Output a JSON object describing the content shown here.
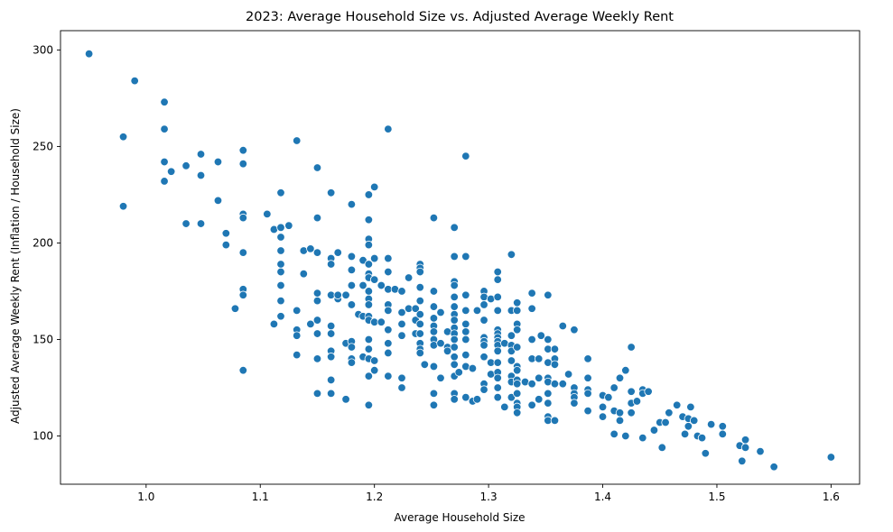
{
  "chart_data": {
    "type": "scatter",
    "title": "2023: Average Household Size vs. Adjusted Average Weekly Rent",
    "xlabel": "Average Household Size",
    "ylabel": "Adjusted Average Weekly Rent (Inflation / Household Size)",
    "xlim": [
      0.925,
      1.625
    ],
    "ylim": [
      75,
      310
    ],
    "xticks": [
      1.0,
      1.1,
      1.2,
      1.3,
      1.4,
      1.5,
      1.6
    ],
    "xtick_labels": [
      "1.0",
      "1.1",
      "1.2",
      "1.3",
      "1.4",
      "1.5",
      "1.6"
    ],
    "yticks": [
      100,
      150,
      200,
      250,
      300
    ],
    "ytick_labels": [
      "100",
      "150",
      "200",
      "250",
      "300"
    ],
    "grid": false,
    "marker_color": "#1f77b4",
    "marker_edge_color": "#ffffff",
    "points": [
      [
        0.95,
        298
      ],
      [
        0.98,
        255
      ],
      [
        0.98,
        219
      ],
      [
        0.99,
        284
      ],
      [
        1.016,
        273
      ],
      [
        1.016,
        259
      ],
      [
        1.016,
        242
      ],
      [
        1.016,
        232
      ],
      [
        1.022,
        237
      ],
      [
        1.035,
        240
      ],
      [
        1.035,
        210
      ],
      [
        1.048,
        246
      ],
      [
        1.048,
        235
      ],
      [
        1.048,
        210
      ],
      [
        1.063,
        242
      ],
      [
        1.063,
        222
      ],
      [
        1.07,
        205
      ],
      [
        1.07,
        199
      ],
      [
        1.078,
        166
      ],
      [
        1.085,
        248
      ],
      [
        1.085,
        241
      ],
      [
        1.085,
        215
      ],
      [
        1.085,
        213
      ],
      [
        1.085,
        195
      ],
      [
        1.085,
        176
      ],
      [
        1.085,
        173
      ],
      [
        1.085,
        134
      ],
      [
        1.106,
        215
      ],
      [
        1.112,
        207
      ],
      [
        1.112,
        158
      ],
      [
        1.118,
        226
      ],
      [
        1.118,
        208
      ],
      [
        1.118,
        203
      ],
      [
        1.118,
        196
      ],
      [
        1.118,
        189
      ],
      [
        1.118,
        185
      ],
      [
        1.118,
        178
      ],
      [
        1.118,
        170
      ],
      [
        1.118,
        162
      ],
      [
        1.125,
        209
      ],
      [
        1.132,
        253
      ],
      [
        1.132,
        165
      ],
      [
        1.132,
        155
      ],
      [
        1.132,
        152
      ],
      [
        1.132,
        142
      ],
      [
        1.138,
        196
      ],
      [
        1.138,
        184
      ],
      [
        1.144,
        197
      ],
      [
        1.144,
        158
      ],
      [
        1.15,
        239
      ],
      [
        1.15,
        213
      ],
      [
        1.15,
        195
      ],
      [
        1.15,
        174
      ],
      [
        1.15,
        170
      ],
      [
        1.15,
        160
      ],
      [
        1.15,
        153
      ],
      [
        1.15,
        140
      ],
      [
        1.15,
        122
      ],
      [
        1.162,
        226
      ],
      [
        1.162,
        192
      ],
      [
        1.162,
        189
      ],
      [
        1.162,
        173
      ],
      [
        1.162,
        157
      ],
      [
        1.162,
        153
      ],
      [
        1.162,
        144
      ],
      [
        1.162,
        141
      ],
      [
        1.162,
        129
      ],
      [
        1.162,
        122
      ],
      [
        1.168,
        195
      ],
      [
        1.168,
        171
      ],
      [
        1.168,
        173
      ],
      [
        1.175,
        173
      ],
      [
        1.175,
        148
      ],
      [
        1.175,
        119
      ],
      [
        1.18,
        220
      ],
      [
        1.18,
        193
      ],
      [
        1.18,
        186
      ],
      [
        1.18,
        178
      ],
      [
        1.18,
        168
      ],
      [
        1.18,
        149
      ],
      [
        1.18,
        146
      ],
      [
        1.18,
        140
      ],
      [
        1.18,
        138
      ],
      [
        1.186,
        163
      ],
      [
        1.19,
        162
      ],
      [
        1.19,
        141
      ],
      [
        1.19,
        191
      ],
      [
        1.19,
        178
      ],
      [
        1.195,
        225
      ],
      [
        1.195,
        212
      ],
      [
        1.195,
        202
      ],
      [
        1.195,
        199
      ],
      [
        1.195,
        189
      ],
      [
        1.195,
        184
      ],
      [
        1.195,
        182
      ],
      [
        1.195,
        175
      ],
      [
        1.195,
        171
      ],
      [
        1.195,
        168
      ],
      [
        1.195,
        162
      ],
      [
        1.195,
        160
      ],
      [
        1.195,
        150
      ],
      [
        1.195,
        145
      ],
      [
        1.195,
        140
      ],
      [
        1.195,
        131
      ],
      [
        1.195,
        116
      ],
      [
        1.2,
        229
      ],
      [
        1.2,
        192
      ],
      [
        1.2,
        181
      ],
      [
        1.2,
        159
      ],
      [
        1.2,
        139
      ],
      [
        1.2,
        134
      ],
      [
        1.206,
        178
      ],
      [
        1.206,
        159
      ],
      [
        1.212,
        259
      ],
      [
        1.212,
        192
      ],
      [
        1.212,
        185
      ],
      [
        1.212,
        176
      ],
      [
        1.212,
        168
      ],
      [
        1.212,
        165
      ],
      [
        1.212,
        155
      ],
      [
        1.212,
        148
      ],
      [
        1.212,
        143
      ],
      [
        1.212,
        131
      ],
      [
        1.218,
        176
      ],
      [
        1.224,
        175
      ],
      [
        1.224,
        164
      ],
      [
        1.224,
        158
      ],
      [
        1.224,
        152
      ],
      [
        1.224,
        130
      ],
      [
        1.224,
        125
      ],
      [
        1.23,
        182
      ],
      [
        1.23,
        166
      ],
      [
        1.236,
        160
      ],
      [
        1.236,
        166
      ],
      [
        1.236,
        153
      ],
      [
        1.24,
        189
      ],
      [
        1.24,
        187
      ],
      [
        1.24,
        185
      ],
      [
        1.24,
        177
      ],
      [
        1.24,
        170
      ],
      [
        1.24,
        163
      ],
      [
        1.24,
        158
      ],
      [
        1.24,
        153
      ],
      [
        1.24,
        148
      ],
      [
        1.24,
        145
      ],
      [
        1.24,
        143
      ],
      [
        1.244,
        137
      ],
      [
        1.252,
        213
      ],
      [
        1.252,
        175
      ],
      [
        1.252,
        167
      ],
      [
        1.252,
        161
      ],
      [
        1.252,
        157
      ],
      [
        1.252,
        154
      ],
      [
        1.252,
        150
      ],
      [
        1.252,
        147
      ],
      [
        1.252,
        136
      ],
      [
        1.252,
        122
      ],
      [
        1.252,
        116
      ],
      [
        1.258,
        164
      ],
      [
        1.258,
        148
      ],
      [
        1.258,
        130
      ],
      [
        1.264,
        154
      ],
      [
        1.264,
        146
      ],
      [
        1.264,
        144
      ],
      [
        1.27,
        208
      ],
      [
        1.27,
        193
      ],
      [
        1.27,
        180
      ],
      [
        1.27,
        178
      ],
      [
        1.27,
        172
      ],
      [
        1.27,
        167
      ],
      [
        1.27,
        163
      ],
      [
        1.27,
        160
      ],
      [
        1.27,
        156
      ],
      [
        1.27,
        153
      ],
      [
        1.27,
        150
      ],
      [
        1.27,
        146
      ],
      [
        1.27,
        141
      ],
      [
        1.27,
        137
      ],
      [
        1.27,
        131
      ],
      [
        1.27,
        122
      ],
      [
        1.27,
        119
      ],
      [
        1.274,
        133
      ],
      [
        1.28,
        245
      ],
      [
        1.28,
        193
      ],
      [
        1.28,
        173
      ],
      [
        1.28,
        165
      ],
      [
        1.28,
        158
      ],
      [
        1.28,
        154
      ],
      [
        1.28,
        150
      ],
      [
        1.28,
        142
      ],
      [
        1.28,
        136
      ],
      [
        1.28,
        120
      ],
      [
        1.286,
        135
      ],
      [
        1.286,
        118
      ],
      [
        1.29,
        165
      ],
      [
        1.29,
        119
      ],
      [
        1.296,
        175
      ],
      [
        1.296,
        172
      ],
      [
        1.296,
        168
      ],
      [
        1.296,
        160
      ],
      [
        1.296,
        151
      ],
      [
        1.296,
        149
      ],
      [
        1.296,
        147
      ],
      [
        1.296,
        141
      ],
      [
        1.296,
        127
      ],
      [
        1.296,
        124
      ],
      [
        1.302,
        171
      ],
      [
        1.302,
        138
      ],
      [
        1.302,
        132
      ],
      [
        1.308,
        185
      ],
      [
        1.308,
        181
      ],
      [
        1.308,
        172
      ],
      [
        1.308,
        165
      ],
      [
        1.308,
        155
      ],
      [
        1.308,
        153
      ],
      [
        1.308,
        151
      ],
      [
        1.308,
        149
      ],
      [
        1.308,
        147
      ],
      [
        1.308,
        144
      ],
      [
        1.308,
        138
      ],
      [
        1.308,
        133
      ],
      [
        1.308,
        130
      ],
      [
        1.308,
        125
      ],
      [
        1.308,
        120
      ],
      [
        1.314,
        148
      ],
      [
        1.314,
        115
      ],
      [
        1.32,
        194
      ],
      [
        1.32,
        165
      ],
      [
        1.32,
        152
      ],
      [
        1.32,
        147
      ],
      [
        1.32,
        144
      ],
      [
        1.32,
        139
      ],
      [
        1.32,
        131
      ],
      [
        1.32,
        128
      ],
      [
        1.32,
        120
      ],
      [
        1.325,
        169
      ],
      [
        1.325,
        165
      ],
      [
        1.325,
        158
      ],
      [
        1.325,
        155
      ],
      [
        1.325,
        146
      ],
      [
        1.325,
        136
      ],
      [
        1.325,
        134
      ],
      [
        1.325,
        129
      ],
      [
        1.325,
        127
      ],
      [
        1.325,
        122
      ],
      [
        1.325,
        117
      ],
      [
        1.325,
        115
      ],
      [
        1.325,
        112
      ],
      [
        1.332,
        128
      ],
      [
        1.338,
        174
      ],
      [
        1.338,
        166
      ],
      [
        1.338,
        150
      ],
      [
        1.338,
        140
      ],
      [
        1.338,
        127
      ],
      [
        1.338,
        116
      ],
      [
        1.344,
        140
      ],
      [
        1.344,
        130
      ],
      [
        1.344,
        119
      ],
      [
        1.346,
        152
      ],
      [
        1.352,
        173
      ],
      [
        1.352,
        150
      ],
      [
        1.352,
        145
      ],
      [
        1.352,
        138
      ],
      [
        1.352,
        130
      ],
      [
        1.352,
        128
      ],
      [
        1.352,
        122
      ],
      [
        1.352,
        117
      ],
      [
        1.352,
        110
      ],
      [
        1.352,
        108
      ],
      [
        1.358,
        145
      ],
      [
        1.358,
        140
      ],
      [
        1.358,
        137
      ],
      [
        1.358,
        127
      ],
      [
        1.358,
        108
      ],
      [
        1.365,
        157
      ],
      [
        1.365,
        127
      ],
      [
        1.37,
        132
      ],
      [
        1.375,
        155
      ],
      [
        1.375,
        125
      ],
      [
        1.375,
        122
      ],
      [
        1.375,
        120
      ],
      [
        1.375,
        117
      ],
      [
        1.387,
        140
      ],
      [
        1.387,
        130
      ],
      [
        1.387,
        124
      ],
      [
        1.387,
        122
      ],
      [
        1.387,
        113
      ],
      [
        1.4,
        121
      ],
      [
        1.4,
        115
      ],
      [
        1.4,
        110
      ],
      [
        1.405,
        120
      ],
      [
        1.41,
        125
      ],
      [
        1.41,
        113
      ],
      [
        1.41,
        101
      ],
      [
        1.415,
        130
      ],
      [
        1.415,
        112
      ],
      [
        1.415,
        108
      ],
      [
        1.42,
        134
      ],
      [
        1.42,
        100
      ],
      [
        1.425,
        146
      ],
      [
        1.425,
        123
      ],
      [
        1.425,
        117
      ],
      [
        1.425,
        112
      ],
      [
        1.43,
        118
      ],
      [
        1.435,
        124
      ],
      [
        1.435,
        122
      ],
      [
        1.435,
        99
      ],
      [
        1.44,
        123
      ],
      [
        1.445,
        103
      ],
      [
        1.45,
        107
      ],
      [
        1.452,
        94
      ],
      [
        1.455,
        107
      ],
      [
        1.458,
        112
      ],
      [
        1.465,
        116
      ],
      [
        1.47,
        110
      ],
      [
        1.472,
        101
      ],
      [
        1.475,
        109
      ],
      [
        1.475,
        105
      ],
      [
        1.477,
        115
      ],
      [
        1.48,
        108
      ],
      [
        1.483,
        100
      ],
      [
        1.487,
        99
      ],
      [
        1.49,
        91
      ],
      [
        1.495,
        106
      ],
      [
        1.505,
        105
      ],
      [
        1.505,
        101
      ],
      [
        1.52,
        95
      ],
      [
        1.522,
        87
      ],
      [
        1.525,
        98
      ],
      [
        1.525,
        94
      ],
      [
        1.538,
        92
      ],
      [
        1.55,
        84
      ],
      [
        1.6,
        89
      ]
    ]
  }
}
